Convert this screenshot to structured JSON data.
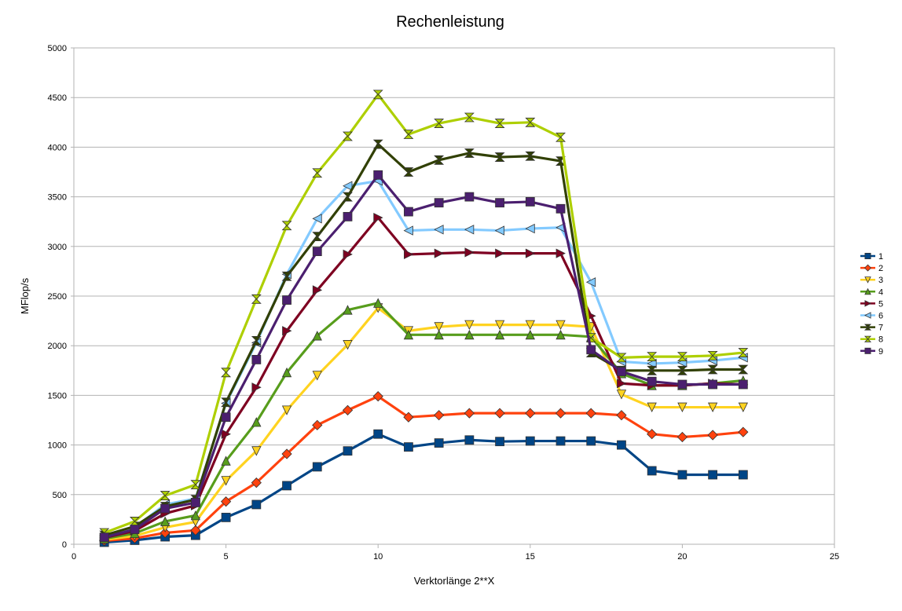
{
  "chart_data": {
    "type": "line",
    "title": "Rechenleistung",
    "xlabel": "Verktorlänge  2**X",
    "ylabel": "MFlop/s",
    "xlim": [
      0,
      25
    ],
    "ylim": [
      0,
      5000
    ],
    "xticks": [
      0,
      5,
      10,
      15,
      20,
      25
    ],
    "yticks": [
      0,
      500,
      1000,
      1500,
      2000,
      2500,
      3000,
      3500,
      4000,
      4500,
      5000
    ],
    "grid": "horizontal",
    "legend_position": "right",
    "x": [
      1,
      2,
      3,
      4,
      5,
      6,
      7,
      8,
      9,
      10,
      11,
      12,
      13,
      14,
      15,
      16,
      17,
      18,
      19,
      20,
      21,
      22
    ],
    "series": [
      {
        "name": "1",
        "color": "#004586",
        "marker": "square",
        "values": [
          20,
          40,
          75,
          90,
          270,
          400,
          590,
          780,
          940,
          1110,
          980,
          1020,
          1050,
          1035,
          1040,
          1040,
          1040,
          1000,
          740,
          700,
          700,
          700
        ]
      },
      {
        "name": "2",
        "color": "#ff420e",
        "marker": "diamond",
        "values": [
          35,
          60,
          115,
          140,
          430,
          620,
          910,
          1200,
          1350,
          1490,
          1280,
          1300,
          1320,
          1320,
          1320,
          1320,
          1320,
          1300,
          1110,
          1080,
          1100,
          1130
        ]
      },
      {
        "name": "3",
        "color": "#ffd320",
        "marker": "triangle-down",
        "values": [
          45,
          85,
          170,
          225,
          640,
          940,
          1350,
          1700,
          2010,
          2380,
          2150,
          2190,
          2210,
          2210,
          2210,
          2210,
          2190,
          1510,
          1380,
          1380,
          1380,
          1380
        ]
      },
      {
        "name": "4",
        "color": "#579d1c",
        "marker": "triangle-up",
        "values": [
          55,
          110,
          230,
          290,
          840,
          1230,
          1730,
          2100,
          2360,
          2430,
          2110,
          2110,
          2110,
          2110,
          2110,
          2110,
          2090,
          1720,
          1600,
          1600,
          1620,
          1650
        ]
      },
      {
        "name": "5",
        "color": "#7e0021",
        "marker": "triangle-right",
        "values": [
          65,
          135,
          310,
          390,
          1110,
          1580,
          2150,
          2560,
          2920,
          3290,
          2920,
          2930,
          2940,
          2930,
          2930,
          2930,
          2300,
          1620,
          1600,
          1600,
          1620,
          1610
        ]
      },
      {
        "name": "6",
        "color": "#83caff",
        "marker": "triangle-left",
        "values": [
          85,
          170,
          400,
          460,
          1420,
          2030,
          2720,
          3280,
          3610,
          3660,
          3160,
          3170,
          3170,
          3160,
          3180,
          3190,
          2640,
          1840,
          1820,
          1830,
          1850,
          1880
        ]
      },
      {
        "name": "7",
        "color": "#314004",
        "marker": "bowtie",
        "values": [
          90,
          180,
          380,
          450,
          1430,
          2050,
          2700,
          3100,
          3500,
          4030,
          3750,
          3870,
          3940,
          3900,
          3910,
          3860,
          1930,
          1750,
          1750,
          1750,
          1760,
          1760
        ]
      },
      {
        "name": "8",
        "color": "#aecf00",
        "marker": "hourglass",
        "values": [
          115,
          230,
          490,
          600,
          1730,
          2470,
          3210,
          3740,
          4110,
          4530,
          4130,
          4240,
          4300,
          4240,
          4250,
          4100,
          2080,
          1880,
          1890,
          1890,
          1900,
          1930
        ]
      },
      {
        "name": "9",
        "color": "#4b1f6f",
        "marker": "square",
        "values": [
          70,
          150,
          360,
          420,
          1280,
          1860,
          2460,
          2950,
          3300,
          3720,
          3350,
          3440,
          3500,
          3440,
          3450,
          3380,
          1960,
          1740,
          1640,
          1610,
          1610,
          1610
        ]
      }
    ]
  }
}
